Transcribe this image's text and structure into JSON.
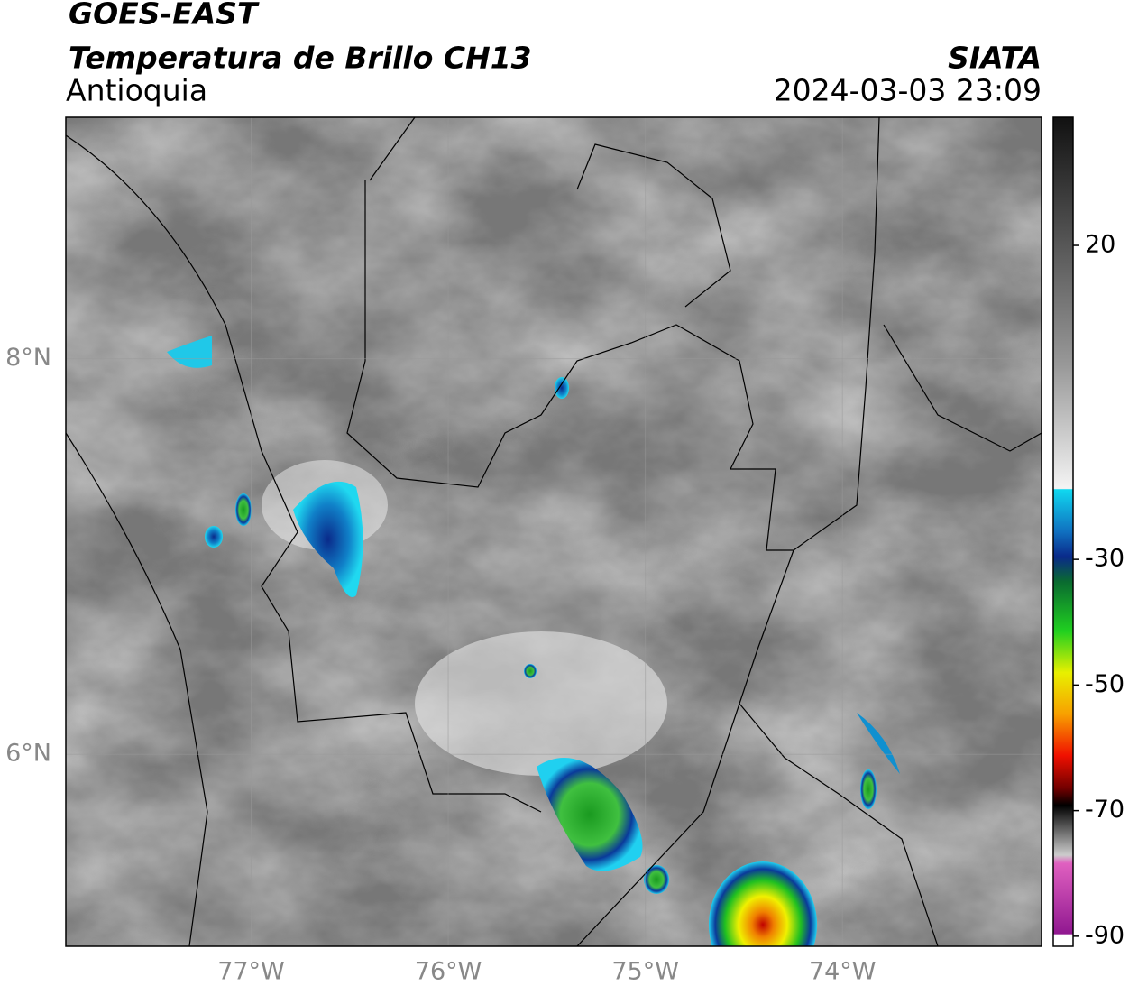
{
  "header": {
    "satellite": "GOES-EAST",
    "title": "Temperatura de Brillo CH13",
    "region": "Antioquia",
    "source": "SIATA",
    "datetime": "2024-03-03 23:09"
  },
  "map": {
    "xlim": [
      -77.94,
      -72.99
    ],
    "ylim": [
      5.03,
      9.22
    ],
    "xticks": [
      {
        "value": -77,
        "label": "77°W"
      },
      {
        "value": -76,
        "label": "76°W"
      },
      {
        "value": -75,
        "label": "75°W"
      },
      {
        "value": -74,
        "label": "74°W"
      }
    ],
    "yticks": [
      {
        "value": 8,
        "label": "8°N"
      },
      {
        "value": 6,
        "label": "6°N"
      }
    ]
  },
  "colorbar": {
    "lim": [
      -91.6,
      40.4
    ],
    "ticks": [
      20,
      -30,
      -50,
      -70,
      -90
    ]
  }
}
